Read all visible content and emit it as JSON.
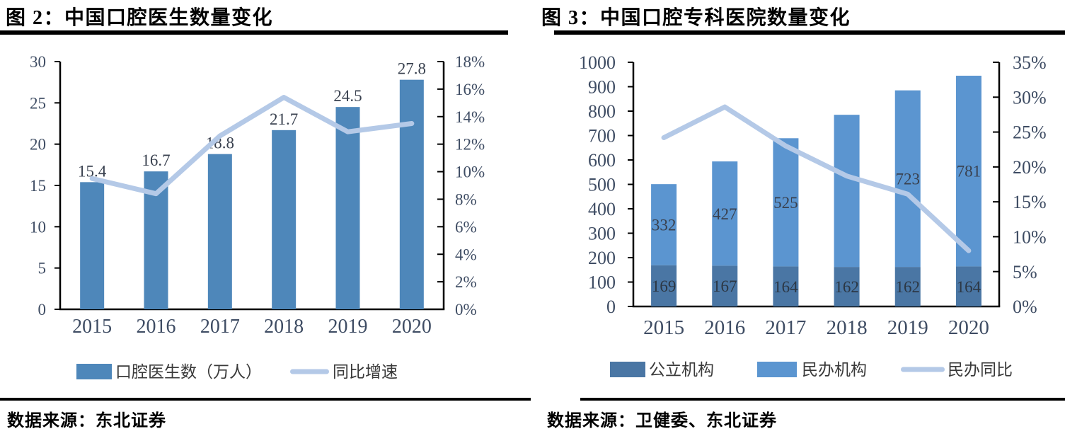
{
  "page": {
    "background": "#ffffff",
    "accent_bar_blue": "#4e87ba",
    "accent_dark_blue": "#4a76a4",
    "accent_mid_blue": "#5b95d0",
    "accent_light_blue": "#b4c9e7"
  },
  "chart_data": [
    {
      "type": "bar+line",
      "title": "图 2：中国口腔医生数量变化",
      "source_note": "数据来源：东北证券",
      "categories": [
        "2015",
        "2016",
        "2017",
        "2018",
        "2019",
        "2020"
      ],
      "series": [
        {
          "name": "口腔医生数（万人）",
          "kind": "bar",
          "stack": false,
          "axis": "left",
          "color": "#4e87ba",
          "values": [
            15.4,
            16.7,
            18.8,
            21.7,
            24.5,
            27.8
          ],
          "labels": [
            "15.4",
            "16.7",
            "18.8",
            "21.7",
            "24.5",
            "27.8"
          ],
          "label_pos": "above"
        },
        {
          "name": "同比增速",
          "kind": "line",
          "axis": "right",
          "color": "#b4c9e7",
          "unit": "%",
          "values": [
            9.5,
            8.4,
            12.6,
            15.4,
            12.9,
            13.5
          ]
        }
      ],
      "left_axis": {
        "min": 0,
        "max": 30,
        "step": 5,
        "labels": [
          "0",
          "5",
          "10",
          "15",
          "20",
          "25",
          "30"
        ]
      },
      "right_axis": {
        "min": 0,
        "max": 18,
        "step": 2,
        "labels": [
          "0%",
          "2%",
          "4%",
          "6%",
          "8%",
          "10%",
          "12%",
          "14%",
          "16%",
          "18%"
        ]
      },
      "legend": [
        {
          "label": "口腔医生数（万人）",
          "swatch": "bar",
          "color": "#4e87ba"
        },
        {
          "label": "同比增速",
          "swatch": "line",
          "color": "#b4c9e7"
        }
      ],
      "legend_position": "bottom",
      "grid": false
    },
    {
      "type": "stacked-bar+line",
      "title": "图 3：中国口腔专科医院数量变化",
      "source_note": "数据来源：卫健委、东北证券",
      "categories": [
        "2015",
        "2016",
        "2017",
        "2018",
        "2019",
        "2020"
      ],
      "series": [
        {
          "name": "公立机构",
          "kind": "bar",
          "stack": true,
          "axis": "left",
          "color": "#4a76a4",
          "values": [
            169,
            167,
            164,
            162,
            162,
            164
          ],
          "labels": [
            "169",
            "167",
            "164",
            "162",
            "162",
            "164"
          ],
          "label_pos": "center",
          "label_color": "#2c3744"
        },
        {
          "name": "民办机构",
          "kind": "bar",
          "stack": true,
          "axis": "left",
          "color": "#5b95d0",
          "values": [
            332,
            427,
            525,
            623,
            723,
            781
          ],
          "labels": [
            "332",
            "427",
            "525",
            "",
            "723",
            "781"
          ],
          "label_pos": "center",
          "label_color": "#39414f"
        },
        {
          "name": "民办同比",
          "kind": "line",
          "axis": "right",
          "color": "#b4c9e7",
          "unit": "%",
          "values": [
            24.2,
            28.6,
            23.0,
            18.7,
            16.1,
            8.0
          ]
        }
      ],
      "left_axis": {
        "min": 0,
        "max": 1000,
        "step": 100,
        "labels": [
          "0",
          "100",
          "200",
          "300",
          "400",
          "500",
          "600",
          "700",
          "800",
          "900",
          "1000"
        ]
      },
      "right_axis": {
        "min": 0,
        "max": 35,
        "step": 5,
        "labels": [
          "0%",
          "5%",
          "10%",
          "15%",
          "20%",
          "25%",
          "30%",
          "35%"
        ]
      },
      "legend": [
        {
          "label": "公立机构",
          "swatch": "bar",
          "color": "#4a76a4"
        },
        {
          "label": "民办机构",
          "swatch": "bar",
          "color": "#5b95d0"
        },
        {
          "label": "民办同比",
          "swatch": "line",
          "color": "#b4c9e7"
        }
      ],
      "legend_position": "bottom",
      "grid": false
    }
  ]
}
